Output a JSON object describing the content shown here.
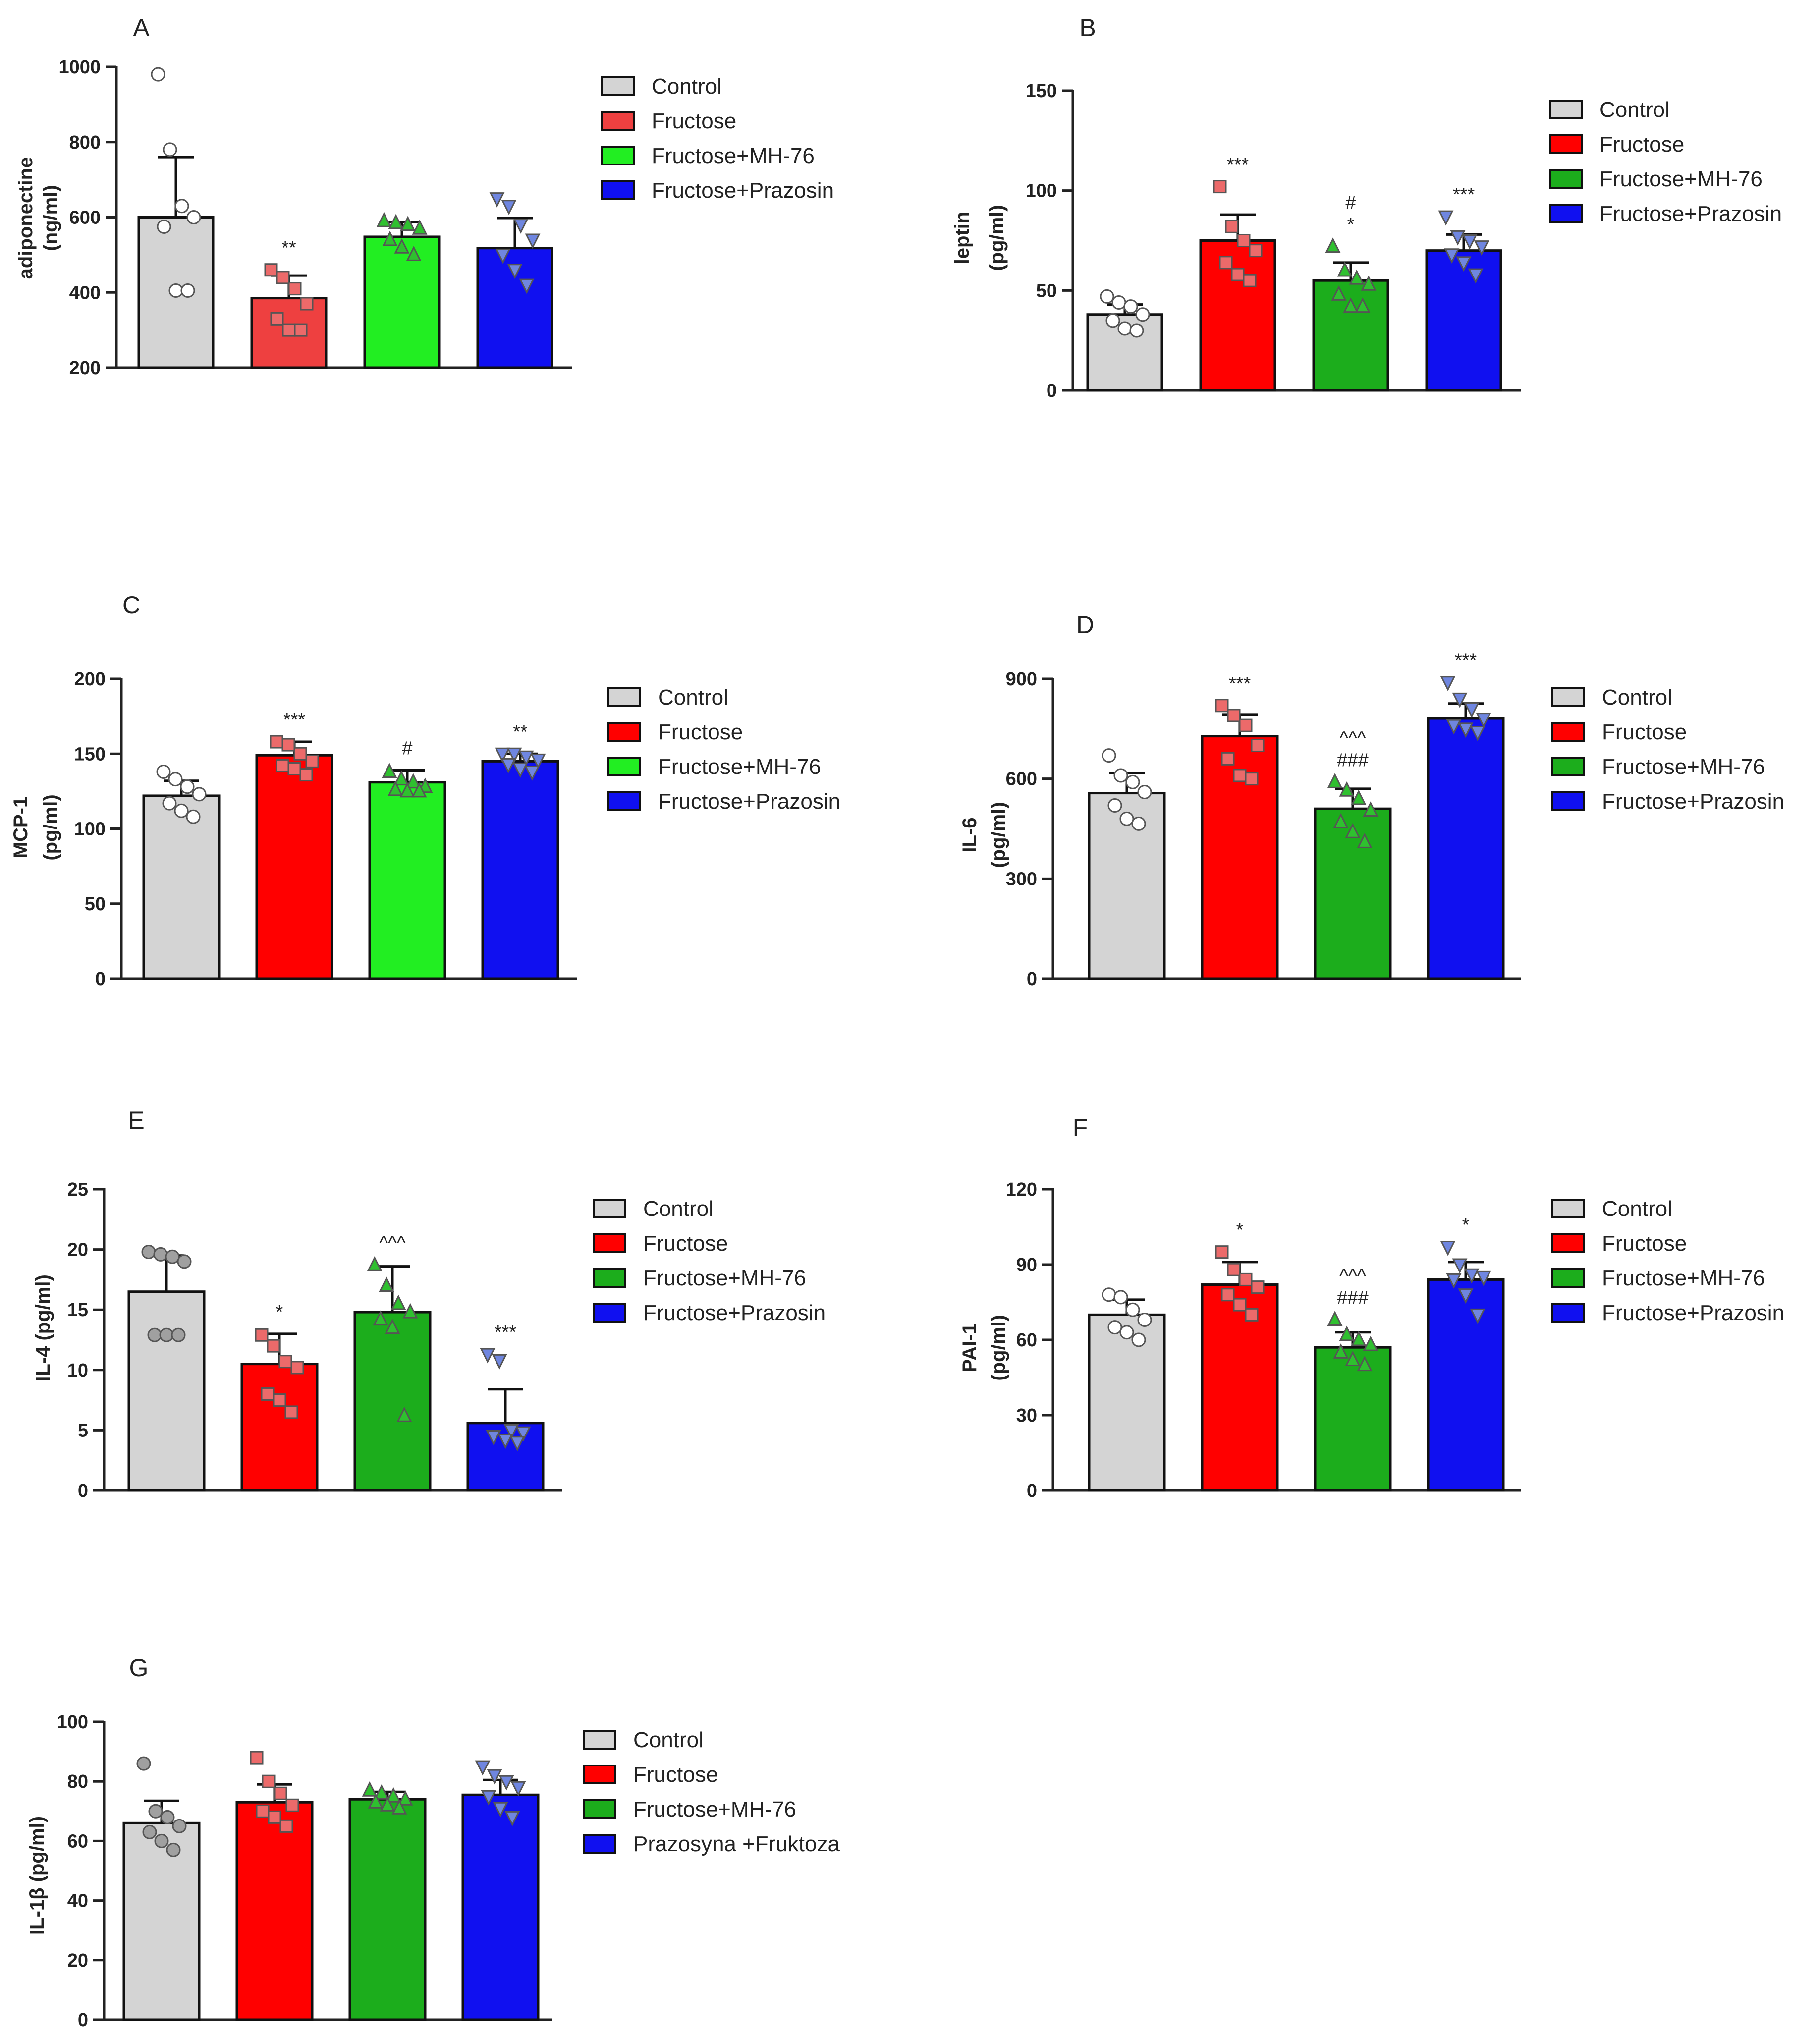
{
  "figure": {
    "series_colors": {
      "A": [
        "#d4d4d4",
        "#ee4040",
        "#22ee22",
        "#1010f0"
      ],
      "B": [
        "#d4d4d4",
        "#ff0000",
        "#1cad1c",
        "#1010f0"
      ],
      "C": [
        "#d4d4d4",
        "#ff0000",
        "#22ee22",
        "#1010f0"
      ],
      "D": [
        "#d4d4d4",
        "#ff0000",
        "#1cad1c",
        "#1010f0"
      ],
      "E": [
        "#d4d4d4",
        "#ff0000",
        "#1cad1c",
        "#1010f0"
      ],
      "F": [
        "#d4d4d4",
        "#ff0000",
        "#1cad1c",
        "#1010f0"
      ],
      "G": [
        "#d4d4d4",
        "#ff0000",
        "#1cad1c",
        "#1010f0"
      ]
    },
    "point_colors": [
      "#ffffff",
      "#ec6a6a",
      "#2fc02f",
      "#6f86e0"
    ],
    "panel_G_control_point_color": "#a0a0a0",
    "panel_E_control_point_color": "#a0a0a0"
  },
  "chart_data": [
    {
      "panel": "A",
      "type": "bar",
      "ylabel": [
        "adiponectine",
        "(ng/ml)"
      ],
      "ylim": [
        200,
        1000
      ],
      "ticks": [
        200,
        400,
        600,
        800,
        1000
      ],
      "legend": [
        "Control",
        "Fructose",
        "Fructose+MH-76",
        "Fructose+Prazosin"
      ],
      "means": [
        600,
        385,
        548,
        518
      ],
      "errors": [
        160,
        60,
        40,
        80
      ],
      "annotations": [
        [],
        [
          "**"
        ],
        [],
        []
      ],
      "points": [
        [
          980,
          780,
          630,
          600,
          575,
          405,
          405
        ],
        [
          460,
          440,
          410,
          370,
          330,
          300,
          300
        ],
        [
          590,
          585,
          580,
          570,
          540,
          520,
          500
        ],
        [
          650,
          630,
          580,
          540,
          500,
          460,
          420
        ]
      ],
      "markers": [
        "circle",
        "square",
        "triangle-up",
        "triangle-down"
      ]
    },
    {
      "panel": "B",
      "type": "bar",
      "ylabel": [
        "leptin",
        "(pg/ml)"
      ],
      "ylim": [
        0,
        150
      ],
      "ticks": [
        0,
        50,
        100,
        150
      ],
      "legend": [
        "Control",
        "Fructose",
        "Fructose+MH-76",
        "Fructose+Prazosin"
      ],
      "means": [
        38,
        75,
        55,
        70
      ],
      "errors": [
        5,
        13,
        9,
        8
      ],
      "annotations": [
        [],
        [
          "***"
        ],
        [
          "#",
          "*"
        ],
        [
          "***"
        ]
      ],
      "points": [
        [
          47,
          44,
          42,
          38,
          35,
          31,
          30
        ],
        [
          102,
          82,
          75,
          70,
          64,
          58,
          55
        ],
        [
          72,
          60,
          56,
          53,
          48,
          42,
          42
        ],
        [
          87,
          77,
          75,
          72,
          68,
          64,
          58
        ]
      ],
      "markers": [
        "circle",
        "square",
        "triangle-up",
        "triangle-down"
      ]
    },
    {
      "panel": "C",
      "type": "bar",
      "ylabel": [
        "MCP-1",
        "(pg/ml)"
      ],
      "ylim": [
        0,
        200
      ],
      "ticks": [
        0,
        50,
        100,
        150,
        200
      ],
      "legend": [
        "Control",
        "Fructose",
        "Fructose+MH-76",
        "Fructose+Prazosin"
      ],
      "means": [
        122,
        149,
        131,
        145
      ],
      "errors": [
        10,
        9,
        8,
        5
      ],
      "annotations": [
        [],
        [
          "***"
        ],
        [
          "#"
        ],
        [
          "**"
        ]
      ],
      "points": [
        [
          138,
          133,
          128,
          123,
          117,
          112,
          108
        ],
        [
          158,
          156,
          150,
          145,
          142,
          140,
          136
        ],
        [
          138,
          133,
          131,
          128,
          126,
          125,
          125
        ],
        [
          150,
          150,
          148,
          146,
          143,
          140,
          138
        ]
      ],
      "markers": [
        "circle",
        "square",
        "triangle-up",
        "triangle-down"
      ]
    },
    {
      "panel": "D",
      "type": "bar",
      "ylabel": [
        "IL-6",
        "(pg/ml)"
      ],
      "ylim": [
        0,
        900
      ],
      "ticks": [
        0,
        300,
        600,
        900
      ],
      "legend": [
        "Control",
        "Fructose",
        "Fructose+MH-76",
        "Fructose+Prazosin"
      ],
      "means": [
        557,
        728,
        510,
        781
      ],
      "errors": [
        60,
        65,
        60,
        45
      ],
      "annotations": [
        [],
        [
          "***"
        ],
        [
          "^^^",
          "###"
        ],
        [
          "***"
        ]
      ],
      "points": [
        [
          670,
          610,
          590,
          560,
          520,
          480,
          465
        ],
        [
          820,
          790,
          760,
          700,
          660,
          610,
          600
        ],
        [
          590,
          565,
          540,
          505,
          470,
          440,
          410
        ],
        [
          890,
          840,
          810,
          780,
          760,
          750,
          740
        ]
      ],
      "markers": [
        "circle",
        "square",
        "triangle-up",
        "triangle-down"
      ]
    },
    {
      "panel": "E",
      "type": "bar",
      "ylabel": [
        "IL-4 (pg/ml)"
      ],
      "ylim": [
        0,
        25
      ],
      "ticks": [
        0,
        5,
        10,
        15,
        20,
        25
      ],
      "legend": [
        "Control",
        "Fructose",
        "Fructose+MH-76",
        "Fructose+Prazosin"
      ],
      "means": [
        16.5,
        10.5,
        14.8,
        5.6
      ],
      "errors": [
        3.0,
        2.5,
        3.8,
        2.8
      ],
      "annotations": [
        [],
        [
          "*"
        ],
        [
          "^^^"
        ],
        [
          "***"
        ]
      ],
      "points": [
        [
          19.8,
          19.6,
          19.4,
          19.0,
          12.9,
          12.9,
          12.9
        ],
        [
          12.9,
          12.0,
          10.7,
          10.2,
          8.0,
          7.5,
          6.5
        ],
        [
          18.7,
          17.0,
          15.5,
          14.8,
          14.2,
          13.5,
          6.2
        ],
        [
          11.3,
          10.8,
          5.0,
          4.8,
          4.5,
          4.2,
          4.0
        ]
      ],
      "markers": [
        "circle",
        "square",
        "triangle-up",
        "triangle-down"
      ]
    },
    {
      "panel": "F",
      "type": "bar",
      "ylabel": [
        "PAI-1",
        "(pg/ml)"
      ],
      "ylim": [
        0,
        120
      ],
      "ticks": [
        0,
        30,
        60,
        90,
        120
      ],
      "legend": [
        "Control",
        "Fructose",
        "Fructose+MH-76",
        "Fructose+Prazosin"
      ],
      "means": [
        70,
        82,
        57,
        84
      ],
      "errors": [
        6,
        9,
        6,
        7
      ],
      "annotations": [
        [],
        [
          "*"
        ],
        [
          "^^^",
          "###"
        ],
        [
          "*"
        ]
      ],
      "points": [
        [
          78,
          77,
          72,
          68,
          65,
          63,
          60
        ],
        [
          95,
          88,
          84,
          81,
          78,
          74,
          70
        ],
        [
          68,
          62,
          60,
          58,
          55,
          52,
          50
        ],
        [
          97,
          90,
          86,
          85,
          84,
          78,
          70
        ]
      ],
      "markers": [
        "circle",
        "square",
        "triangle-up",
        "triangle-down"
      ]
    },
    {
      "panel": "G",
      "type": "bar",
      "ylabel": [
        "IL-1β (pg/ml)"
      ],
      "ylim": [
        0,
        100
      ],
      "ticks": [
        0,
        20,
        40,
        60,
        80,
        100
      ],
      "legend": [
        "Control",
        "Fructose",
        "Fructose+MH-76",
        "Prazosyna +Fruktoza"
      ],
      "means": [
        66,
        73,
        74,
        75.5
      ],
      "errors": [
        7.5,
        6,
        2.5,
        5
      ],
      "annotations": [
        [],
        [],
        [],
        []
      ],
      "points": [
        [
          86,
          70,
          68,
          65,
          63,
          60,
          57
        ],
        [
          88,
          80,
          76,
          72,
          70,
          68,
          65
        ],
        [
          77,
          76,
          75,
          74,
          73,
          72,
          71
        ],
        [
          85,
          82,
          80,
          78,
          75,
          71,
          68
        ]
      ],
      "markers": [
        "circle",
        "square",
        "triangle-up",
        "triangle-down"
      ]
    }
  ]
}
